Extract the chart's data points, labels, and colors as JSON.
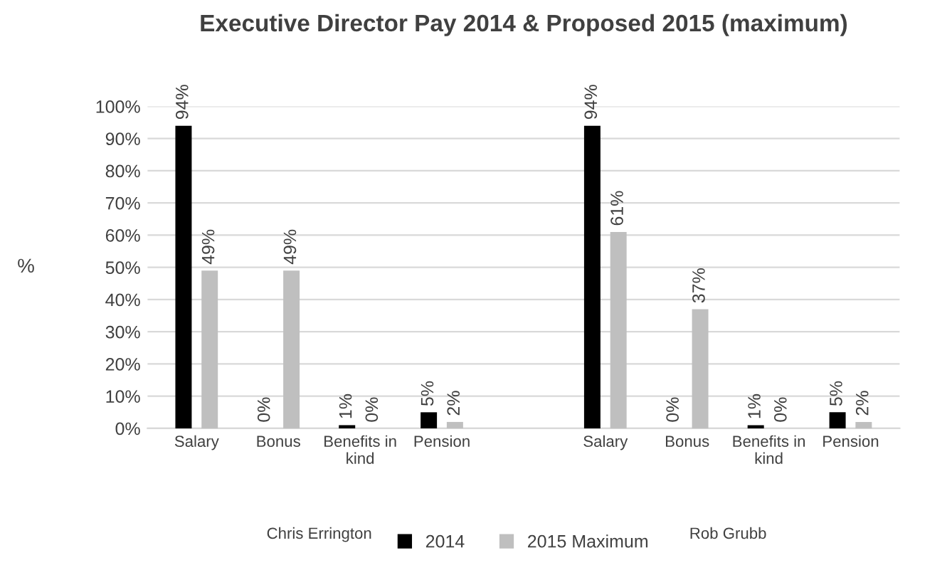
{
  "chart_data": {
    "type": "bar",
    "title": "Executive Director Pay 2014 & Proposed 2015 (maximum)",
    "ylabel": "%",
    "categories": [
      "Salary",
      "Bonus",
      "Benefits in\nkind",
      "Pension",
      null,
      "Salary",
      "Bonus",
      "Benefits in\nkind",
      "Pension"
    ],
    "series": [
      {
        "name": "2014",
        "color": "#000000",
        "values": [
          94,
          0,
          1,
          5,
          null,
          94,
          0,
          1,
          5
        ],
        "value_labels": [
          "94%",
          "0%",
          "1%",
          "5%",
          null,
          "94%",
          "0%",
          "1%",
          "5%"
        ]
      },
      {
        "name": "2015 Maximum",
        "color": "#bfbfbf",
        "values": [
          49,
          49,
          0,
          2,
          null,
          61,
          37,
          0,
          2
        ],
        "value_labels": [
          "49%",
          "49%",
          "0%",
          "2%",
          null,
          "61%",
          "37%",
          "0%",
          "2%"
        ]
      }
    ],
    "annotations": [
      "Chris Errington",
      "Rob Grubb"
    ],
    "ylim": [
      0,
      100
    ],
    "yticks": [
      {
        "value": 0,
        "label": "0%"
      },
      {
        "value": 10,
        "label": "10%"
      },
      {
        "value": 20,
        "label": "20%"
      },
      {
        "value": 30,
        "label": "30%"
      },
      {
        "value": 40,
        "label": "40%"
      },
      {
        "value": 50,
        "label": "50%"
      },
      {
        "value": 60,
        "label": "60%"
      },
      {
        "value": 70,
        "label": "70%"
      },
      {
        "value": 80,
        "label": "80%"
      },
      {
        "value": 90,
        "label": "90%"
      },
      {
        "value": 100,
        "label": "100%"
      }
    ],
    "grid": "y",
    "legend": "bottom"
  }
}
